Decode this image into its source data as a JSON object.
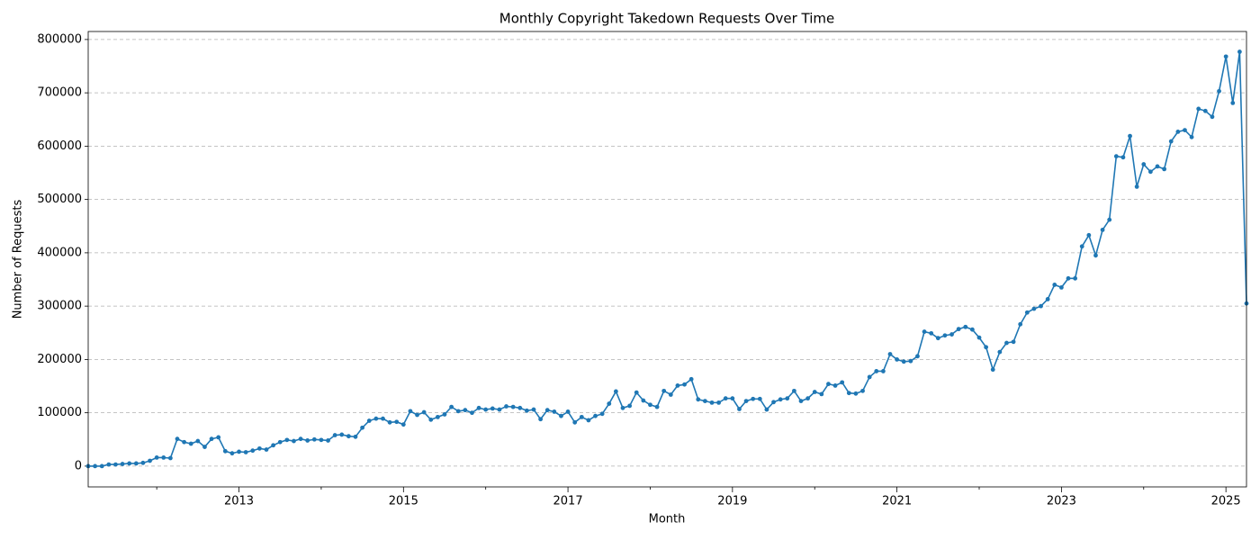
{
  "chart_data": {
    "type": "line",
    "title": "Monthly Copyright Takedown Requests Over Time",
    "x_label": "Month",
    "y_label": "Number of Requests",
    "color": "#1f77b4",
    "x": [
      "2011-03",
      "2011-04",
      "2011-05",
      "2011-06",
      "2011-07",
      "2011-08",
      "2011-09",
      "2011-10",
      "2011-11",
      "2011-12",
      "2012-01",
      "2012-02",
      "2012-03",
      "2012-04",
      "2012-05",
      "2012-06",
      "2012-07",
      "2012-08",
      "2012-09",
      "2012-10",
      "2012-11",
      "2012-12",
      "2013-01",
      "2013-02",
      "2013-03",
      "2013-04",
      "2013-05",
      "2013-06",
      "2013-07",
      "2013-08",
      "2013-09",
      "2013-10",
      "2013-11",
      "2013-12",
      "2014-01",
      "2014-02",
      "2014-03",
      "2014-04",
      "2014-05",
      "2014-06",
      "2014-07",
      "2014-08",
      "2014-09",
      "2014-10",
      "2014-11",
      "2014-12",
      "2015-01",
      "2015-02",
      "2015-03",
      "2015-04",
      "2015-05",
      "2015-06",
      "2015-07",
      "2015-08",
      "2015-09",
      "2015-10",
      "2015-11",
      "2015-12",
      "2016-01",
      "2016-02",
      "2016-03",
      "2016-04",
      "2016-05",
      "2016-06",
      "2016-07",
      "2016-08",
      "2016-09",
      "2016-10",
      "2016-11",
      "2016-12",
      "2017-01",
      "2017-02",
      "2017-03",
      "2017-04",
      "2017-05",
      "2017-06",
      "2017-07",
      "2017-08",
      "2017-09",
      "2017-10",
      "2017-11",
      "2017-12",
      "2018-01",
      "2018-02",
      "2018-03",
      "2018-04",
      "2018-05",
      "2018-06",
      "2018-07",
      "2018-08",
      "2018-09",
      "2018-10",
      "2018-11",
      "2018-12",
      "2019-01",
      "2019-02",
      "2019-03",
      "2019-04",
      "2019-05",
      "2019-06",
      "2019-07",
      "2019-08",
      "2019-09",
      "2019-10",
      "2019-11",
      "2019-12",
      "2020-01",
      "2020-02",
      "2020-03",
      "2020-04",
      "2020-05",
      "2020-06",
      "2020-07",
      "2020-08",
      "2020-09",
      "2020-10",
      "2020-11",
      "2020-12",
      "2021-01",
      "2021-02",
      "2021-03",
      "2021-04",
      "2021-05",
      "2021-06",
      "2021-07",
      "2021-08",
      "2021-09",
      "2021-10",
      "2021-11",
      "2021-12",
      "2022-01",
      "2022-02",
      "2022-03",
      "2022-04",
      "2022-05",
      "2022-06",
      "2022-07",
      "2022-08",
      "2022-09",
      "2022-10",
      "2022-11",
      "2022-12",
      "2023-01",
      "2023-02",
      "2023-03",
      "2023-04",
      "2023-05",
      "2023-06",
      "2023-07",
      "2023-08",
      "2023-09",
      "2023-10",
      "2023-11",
      "2023-12",
      "2024-01",
      "2024-02",
      "2024-03",
      "2024-04",
      "2024-05",
      "2024-06",
      "2024-07",
      "2024-08",
      "2024-09",
      "2024-10",
      "2024-11",
      "2024-12",
      "2025-01",
      "2025-02",
      "2025-03",
      "2025-04"
    ],
    "values": [
      0,
      0,
      0,
      3000,
      3000,
      4000,
      5000,
      5000,
      6000,
      10000,
      16000,
      16000,
      15000,
      51000,
      45000,
      42000,
      47000,
      36000,
      51000,
      54000,
      28000,
      24000,
      27000,
      26000,
      29000,
      33000,
      31000,
      39000,
      45000,
      49000,
      47000,
      51000,
      48000,
      50000,
      49000,
      48000,
      58000,
      59000,
      56000,
      55000,
      72000,
      85000,
      89000,
      89000,
      82000,
      83000,
      78000,
      103000,
      96000,
      101000,
      87000,
      92000,
      97000,
      111000,
      103000,
      105000,
      100000,
      109000,
      106000,
      108000,
      106000,
      112000,
      111000,
      109000,
      104000,
      106000,
      88000,
      105000,
      102000,
      94000,
      102000,
      82000,
      92000,
      86000,
      94000,
      98000,
      117000,
      140000,
      109000,
      113000,
      138000,
      123000,
      115000,
      111000,
      141000,
      134000,
      151000,
      153000,
      163000,
      125000,
      122000,
      119000,
      119000,
      127000,
      127000,
      107000,
      122000,
      126000,
      126000,
      106000,
      120000,
      125000,
      127000,
      141000,
      122000,
      127000,
      139000,
      135000,
      154000,
      151000,
      157000,
      137000,
      136000,
      141000,
      167000,
      178000,
      178000,
      210000,
      200000,
      196000,
      197000,
      206000,
      252000,
      249000,
      240000,
      245000,
      247000,
      257000,
      261000,
      256000,
      241000,
      223000,
      181000,
      214000,
      231000,
      233000,
      266000,
      288000,
      295000,
      300000,
      313000,
      340000,
      335000,
      352000,
      352000,
      412000,
      433000,
      395000,
      443000,
      462000,
      581000,
      579000,
      619000,
      524000,
      566000,
      552000,
      562000,
      557000,
      609000,
      627000,
      630000,
      617000,
      670000,
      666000,
      655000,
      703000,
      768000,
      681000,
      777000,
      305000
    ],
    "xlim": [
      "2011-03",
      "2025-04"
    ],
    "xticks": [
      {
        "value": "2013-01",
        "label": "2013"
      },
      {
        "value": "2015-01",
        "label": "2015"
      },
      {
        "value": "2017-01",
        "label": "2017"
      },
      {
        "value": "2019-01",
        "label": "2019"
      },
      {
        "value": "2021-01",
        "label": "2021"
      },
      {
        "value": "2023-01",
        "label": "2023"
      },
      {
        "value": "2025-01",
        "label": "2025"
      }
    ],
    "x_minor_ticks": [
      "2012-01",
      "2014-01",
      "2016-01",
      "2018-01",
      "2020-01",
      "2022-01",
      "2024-01"
    ],
    "ylim": [
      -39000,
      815000
    ],
    "yticks": [
      0,
      100000,
      200000,
      300000,
      400000,
      500000,
      600000,
      700000,
      800000
    ],
    "grid": true
  }
}
